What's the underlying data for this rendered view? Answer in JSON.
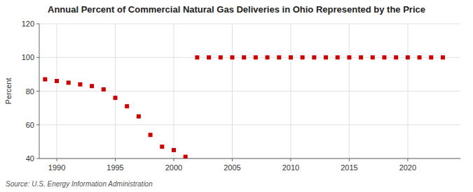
{
  "chart_data": {
    "type": "scatter",
    "title": "Annual Percent of Commercial Natural Gas Deliveries in Ohio Represented by the Price",
    "y_label": "Percent",
    "annotations": [
      "Source: U.S. Energy Information Administration"
    ],
    "x": [
      1989,
      1990,
      1991,
      1992,
      1993,
      1994,
      1995,
      1996,
      1997,
      1998,
      1999,
      2000,
      2001,
      2002,
      2003,
      2004,
      2005,
      2006,
      2007,
      2008,
      2009,
      2010,
      2011,
      2012,
      2013,
      2014,
      2015,
      2016,
      2017,
      2018,
      2019,
      2020,
      2021,
      2022,
      2023
    ],
    "values": [
      87,
      86,
      85,
      84,
      83,
      81,
      76,
      71,
      65,
      54,
      47,
      45,
      41,
      100,
      100,
      100,
      100,
      100,
      100,
      100,
      100,
      100,
      100,
      100,
      100,
      100,
      100,
      100,
      100,
      100,
      100,
      100,
      100,
      100,
      100
    ],
    "color": "#cc0000",
    "marker": "square",
    "xlim": [
      1988.5,
      2024.5
    ],
    "xticks": [
      1990,
      1995,
      2000,
      2005,
      2010,
      2015,
      2020
    ],
    "ylim": [
      40,
      120
    ],
    "yticks": [
      40,
      60,
      80,
      100,
      120
    ],
    "grid": true
  }
}
